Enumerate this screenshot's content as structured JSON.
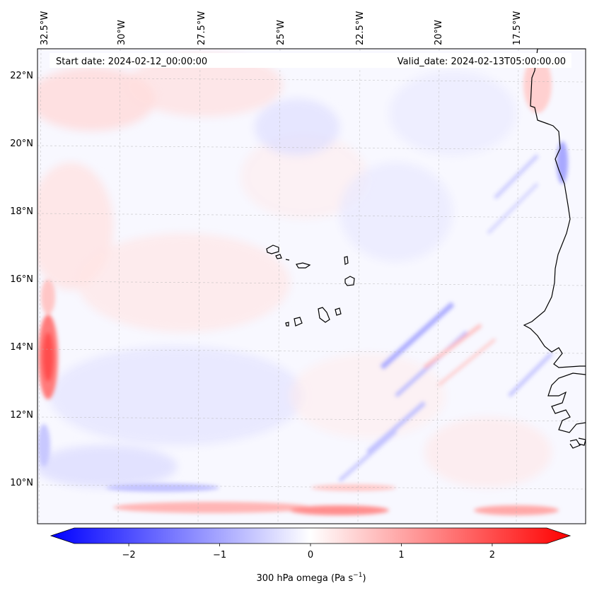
{
  "map": {
    "start_label": "Start date: 2024-02-12_00:00:00",
    "valid_label": "Valid_date: 2024-02-13T05:00:00.00",
    "lon_labels": [
      "32.5°W",
      "30°W",
      "27.5°W",
      "25°W",
      "22.5°W",
      "20°W",
      "17.5°W"
    ],
    "lat_labels": [
      "22°N",
      "20°N",
      "18°N",
      "16°N",
      "14°N",
      "12°N",
      "10°N"
    ]
  },
  "colorbar": {
    "label_prefix": "300 hPa omega (Pa s",
    "label_sup": "−1",
    "label_suffix": ")",
    "tick_labels": [
      "−2",
      "−1",
      "0",
      "1",
      "2"
    ],
    "range": [
      -2.6,
      2.6
    ],
    "min_color": "#0000ff",
    "mid_color": "#ffffff",
    "max_color": "#ff0000"
  }
}
